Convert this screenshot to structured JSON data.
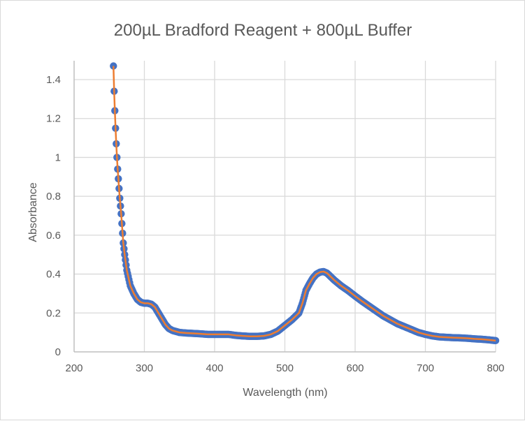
{
  "chart_data": {
    "type": "scatter",
    "title": "200µL Bradford Reagent + 800µL Buffer",
    "xlabel": "Wavelength (nm)",
    "ylabel": "Absorbance",
    "xlim": [
      200,
      800
    ],
    "ylim": [
      0,
      1.5
    ],
    "xticks": [
      200,
      300,
      400,
      500,
      600,
      700,
      800
    ],
    "yticks": [
      0,
      0.2,
      0.4,
      0.6,
      0.8,
      1,
      1.2,
      1.4
    ],
    "xtick_labels": [
      "200",
      "300",
      "400",
      "500",
      "600",
      "700",
      "800"
    ],
    "ytick_labels": [
      "0",
      "0.2",
      "0.4",
      "0.6",
      "0.8",
      "1",
      "1.2",
      "1.4"
    ],
    "grid": true,
    "legend": "none",
    "series": [
      {
        "name": "Absorbance",
        "marker_color": "#4472C4",
        "line_color": "#ED7D31",
        "x": [
          256,
          257,
          258,
          259,
          260,
          261,
          262,
          263,
          264,
          265,
          266,
          267,
          268,
          269,
          270,
          272,
          275,
          280,
          285,
          290,
          295,
          300,
          305,
          310,
          315,
          320,
          325,
          330,
          335,
          340,
          350,
          360,
          370,
          380,
          390,
          400,
          410,
          420,
          430,
          440,
          450,
          460,
          470,
          480,
          490,
          500,
          510,
          520,
          525,
          530,
          535,
          540,
          545,
          550,
          555,
          560,
          570,
          580,
          590,
          600,
          610,
          620,
          630,
          640,
          650,
          660,
          670,
          680,
          690,
          700,
          710,
          720,
          730,
          740,
          750,
          760,
          770,
          780,
          790,
          800
        ],
        "y": [
          1.47,
          1.34,
          1.24,
          1.15,
          1.07,
          1.0,
          0.94,
          0.89,
          0.84,
          0.79,
          0.75,
          0.71,
          0.66,
          0.61,
          0.56,
          0.5,
          0.42,
          0.34,
          0.3,
          0.27,
          0.255,
          0.25,
          0.25,
          0.245,
          0.23,
          0.2,
          0.17,
          0.14,
          0.12,
          0.11,
          0.1,
          0.097,
          0.095,
          0.093,
          0.09,
          0.09,
          0.09,
          0.09,
          0.085,
          0.082,
          0.08,
          0.08,
          0.082,
          0.09,
          0.107,
          0.136,
          0.165,
          0.2,
          0.25,
          0.316,
          0.35,
          0.38,
          0.4,
          0.41,
          0.413,
          0.405,
          0.37,
          0.34,
          0.315,
          0.287,
          0.26,
          0.235,
          0.21,
          0.185,
          0.165,
          0.145,
          0.13,
          0.115,
          0.1,
          0.09,
          0.082,
          0.077,
          0.075,
          0.073,
          0.072,
          0.07,
          0.067,
          0.065,
          0.062,
          0.058
        ]
      }
    ]
  }
}
